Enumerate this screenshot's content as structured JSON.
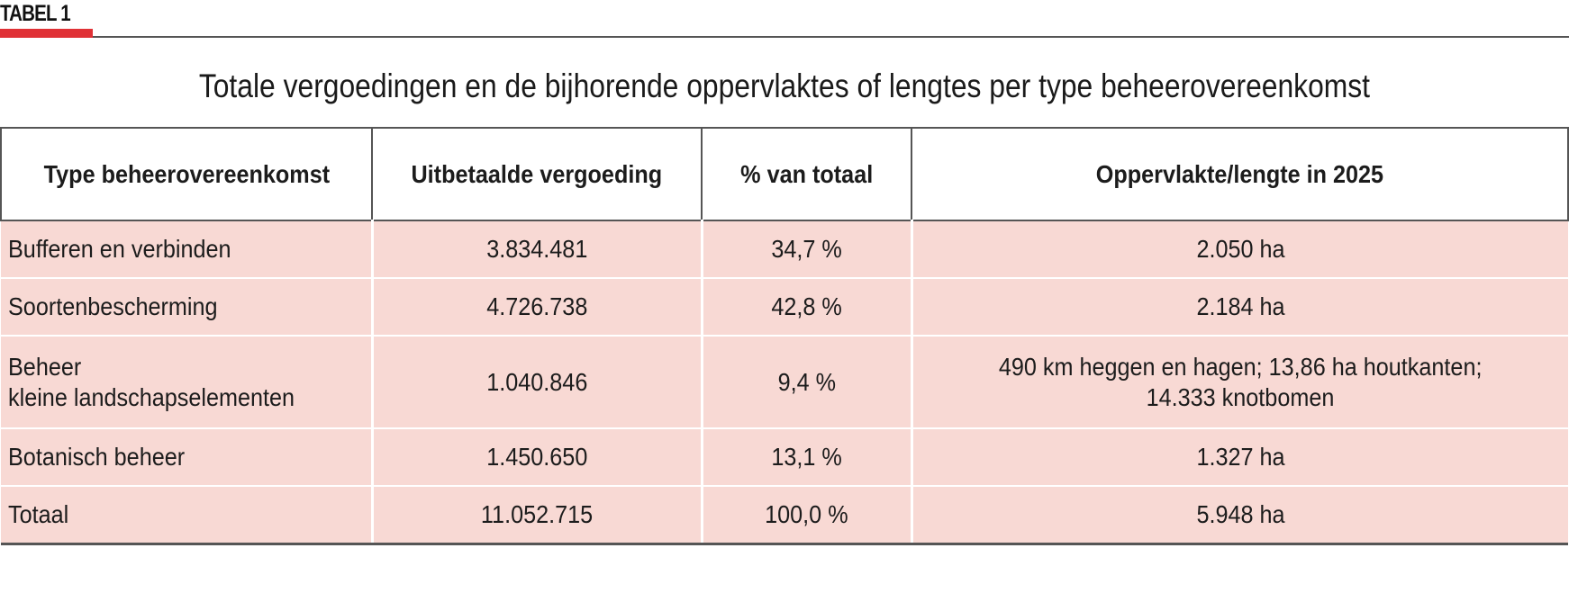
{
  "tag": "TABEL 1",
  "title": "Totale vergoedingen en de bijhorende oppervlaktes of lengtes per type beheerovereenkomst",
  "headers": {
    "type": "Type beheerovereenkomst",
    "payout": "Uitbetaalde vergoeding",
    "pct": "% van totaal",
    "area": "Oppervlakte/lengte in 2025"
  },
  "rows": [
    {
      "type": "Bufferen en verbinden",
      "payout": "3.834.481",
      "pct": "34,7 %",
      "area": "2.050 ha"
    },
    {
      "type": "Soortenbescherming",
      "payout": "4.726.738",
      "pct": "42,8 %",
      "area": "2.184 ha"
    },
    {
      "type_line1": "Beheer",
      "type_line2": "kleine landschapselementen",
      "payout": "1.040.846",
      "pct": "9,4 %",
      "area_line1": "490 km heggen en hagen; 13,86 ha houtkanten;",
      "area_line2": "14.333 knotbomen"
    },
    {
      "type": "Botanisch beheer",
      "payout": "1.450.650",
      "pct": "13,1 %",
      "area": "1.327 ha"
    },
    {
      "type": "Totaal",
      "payout": "11.052.715",
      "pct": "100,0 %",
      "area": "5.948 ha"
    }
  ],
  "colors": {
    "accent_red": "#e03136",
    "row_fill": "#f8d9d4",
    "rule": "#555555"
  }
}
